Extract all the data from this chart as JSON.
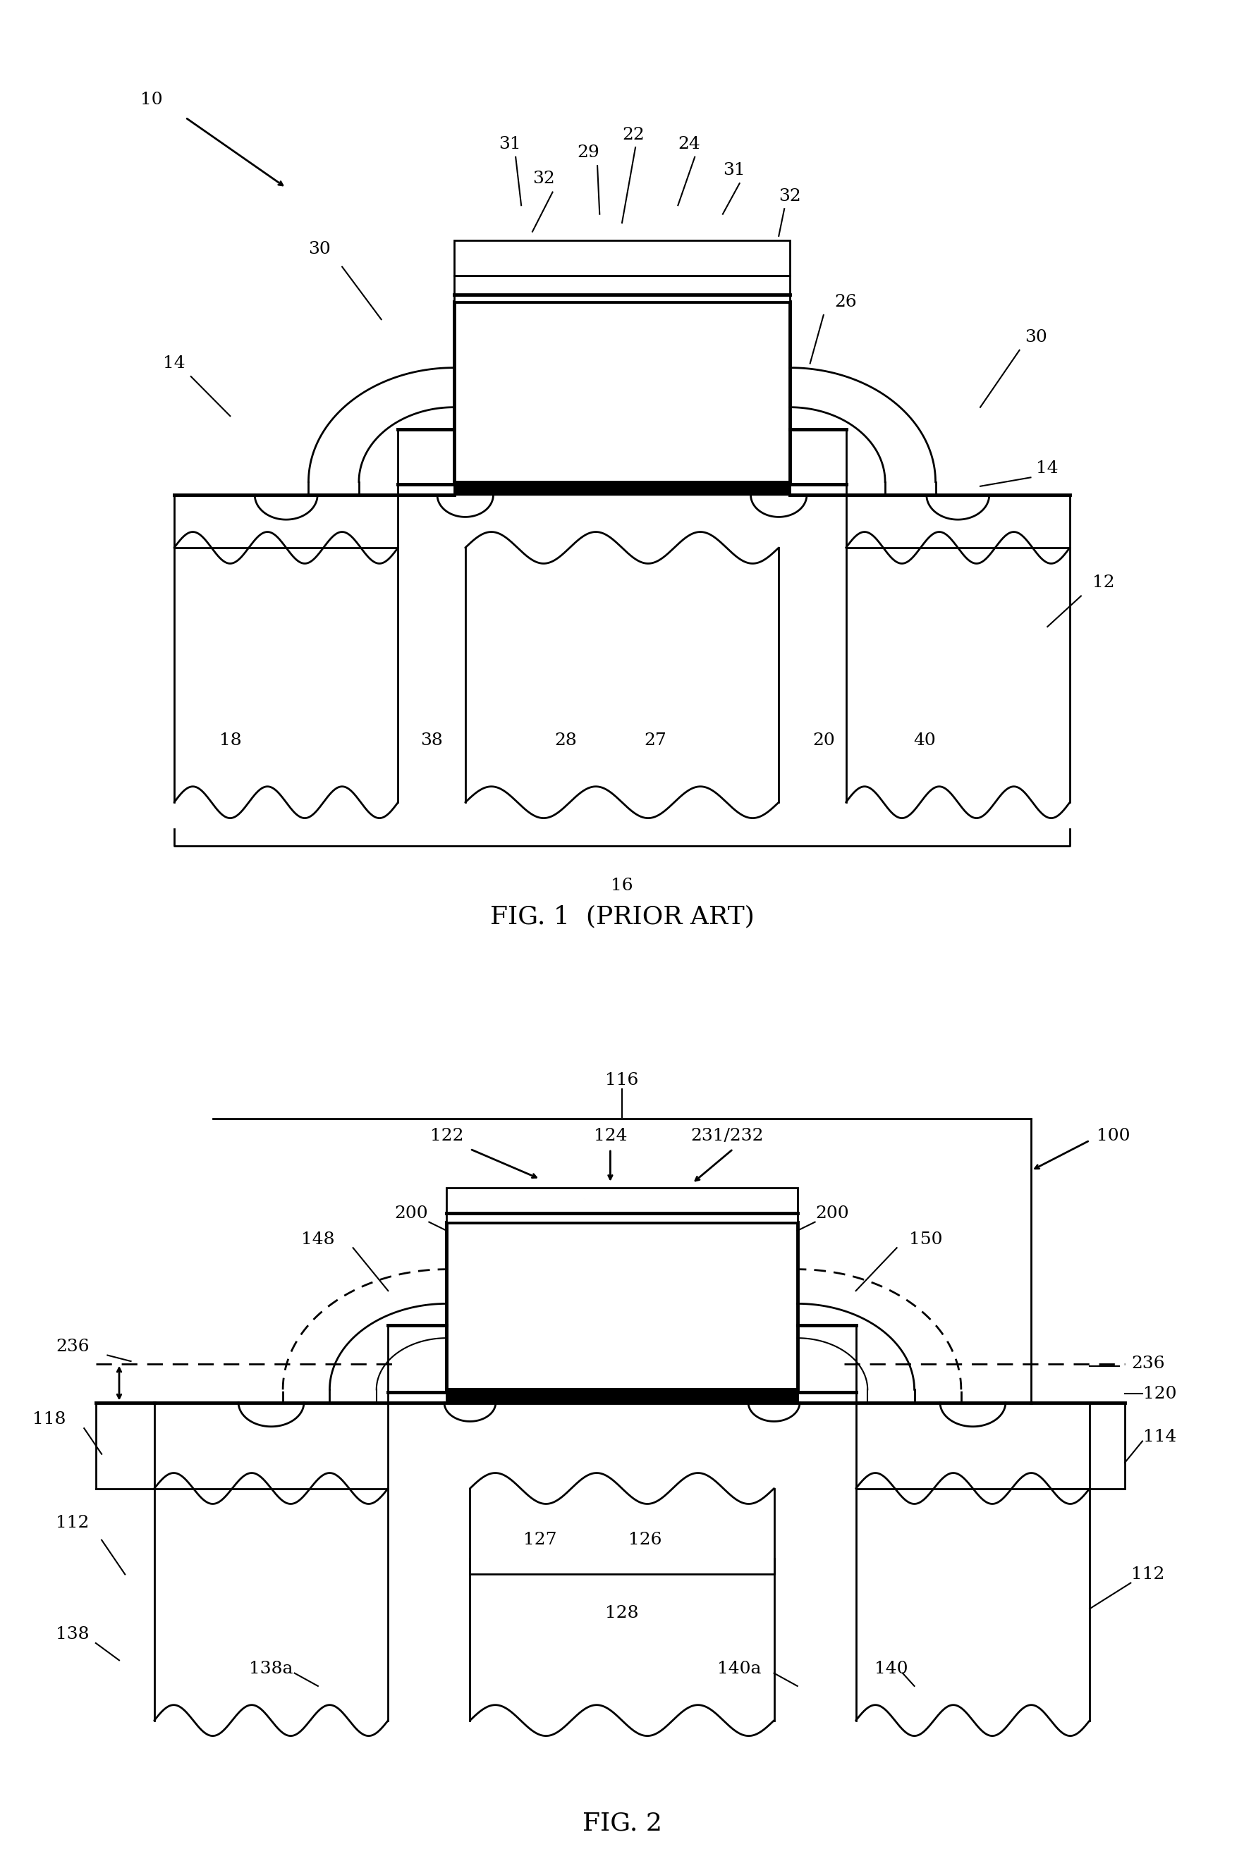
{
  "fig_width": 17.64,
  "fig_height": 26.5,
  "background_color": "#ffffff",
  "line_color": "#000000",
  "lw": 2.0,
  "lw_thick": 3.5,
  "lw_thin": 1.5,
  "fs_label": 18,
  "fs_title": 26,
  "fig1_title": "FIG. 1  (PRIOR ART)",
  "fig2_title": "FIG. 2"
}
